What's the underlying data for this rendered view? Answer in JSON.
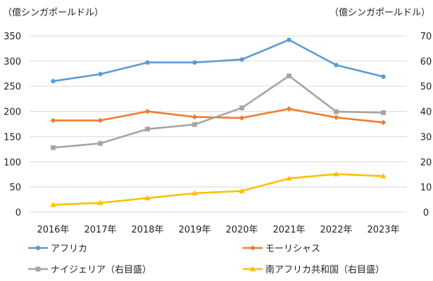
{
  "chart_data": {
    "type": "line",
    "left_axis_label": "（億シンガポールドル）",
    "right_axis_label": "（億シンガポールドル）",
    "categories": [
      "2016年",
      "2017年",
      "2018年",
      "2019年",
      "2020年",
      "2021年",
      "2022年",
      "2023年"
    ],
    "y_left": {
      "min": 0,
      "max": 350,
      "ticks": [
        0,
        50,
        100,
        150,
        200,
        250,
        300,
        350
      ]
    },
    "y_right": {
      "min": 0,
      "max": 70,
      "ticks": [
        0,
        10,
        20,
        30,
        40,
        50,
        60,
        70
      ]
    },
    "grid": true,
    "legend_position": "bottom",
    "series": [
      {
        "name": "アフリカ",
        "axis": "left",
        "color": "#5B9BD5",
        "marker": "circle",
        "values": [
          260,
          274,
          297,
          297,
          303,
          342,
          292,
          269
        ]
      },
      {
        "name": "モーリシャス",
        "axis": "left",
        "color": "#ED7D31",
        "marker": "diamond",
        "values": [
          182,
          182,
          200,
          189,
          187,
          205,
          188,
          178
        ]
      },
      {
        "name": "ナイジェリア（右目盛）",
        "axis": "right",
        "color": "#A5A5A5",
        "marker": "square",
        "values": [
          25.6,
          27.3,
          33.0,
          34.8,
          41.4,
          54.1,
          39.9,
          39.5
        ]
      },
      {
        "name": "南アフリカ共和国（右目盛）",
        "axis": "right",
        "color": "#FFC000",
        "marker": "triangle",
        "values": [
          2.9,
          3.7,
          5.6,
          7.5,
          8.4,
          13.4,
          15.1,
          14.3
        ]
      }
    ]
  }
}
